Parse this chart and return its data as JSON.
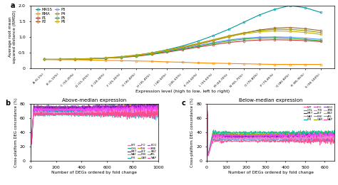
{
  "panel_a": {
    "xlabel": "Expression level (high to low, left to right)",
    "ylabel": "Average root mean\nsquared distance (RMSD)",
    "xlabels": [
      "A (0-1%)",
      "B (5-15%)",
      "C (10-20%)",
      "D (15-25%)",
      "E (20-30%)",
      "F (25-35%)",
      "G (30-40%)",
      "H (35-45%)",
      "I (40-50%)",
      "J (45-55%)",
      "K (50-60%)",
      "L (55-65%)",
      "M (60-70%)",
      "N (65-75%)",
      "O (70-80%)",
      "P (75-85%)",
      "Q (80-90%)",
      "R (85-95%)",
      "S (90-100%)"
    ],
    "ylim": [
      0,
      2.0
    ],
    "yticks": [
      0,
      0.5,
      1.0,
      1.5,
      2.0
    ],
    "series_order": [
      "MASS",
      "RMA",
      "P1",
      "P2",
      "P3",
      "P4",
      "P5",
      "P6"
    ],
    "series": {
      "MASS": {
        "color": "#009999",
        "marker": "o",
        "values": [
          0.28,
          0.28,
          0.29,
          0.3,
          0.32,
          0.35,
          0.41,
          0.49,
          0.59,
          0.71,
          0.86,
          1.04,
          1.24,
          1.47,
          1.7,
          1.88,
          2.0,
          1.93,
          1.78
        ]
      },
      "RMA": {
        "color": "#FF8C00",
        "marker": "o",
        "values": [
          0.28,
          0.27,
          0.27,
          0.26,
          0.25,
          0.24,
          0.23,
          0.22,
          0.2,
          0.19,
          0.17,
          0.16,
          0.15,
          0.14,
          0.13,
          0.12,
          0.12,
          0.12,
          0.12
        ]
      },
      "P1": {
        "color": "#CC3333",
        "marker": "o",
        "values": [
          0.28,
          0.28,
          0.29,
          0.3,
          0.32,
          0.34,
          0.38,
          0.44,
          0.51,
          0.59,
          0.67,
          0.75,
          0.82,
          0.87,
          0.9,
          0.91,
          0.9,
          0.88,
          0.85
        ]
      },
      "P2": {
        "color": "#996633",
        "marker": "o",
        "values": [
          0.28,
          0.28,
          0.29,
          0.3,
          0.32,
          0.35,
          0.4,
          0.47,
          0.55,
          0.65,
          0.76,
          0.88,
          1.0,
          1.12,
          1.22,
          1.28,
          1.3,
          1.26,
          1.2
        ]
      },
      "P3": {
        "color": "#6699FF",
        "marker": "o",
        "values": [
          0.28,
          0.28,
          0.29,
          0.3,
          0.32,
          0.35,
          0.4,
          0.46,
          0.54,
          0.63,
          0.72,
          0.82,
          0.9,
          0.96,
          0.99,
          1.0,
          0.99,
          0.96,
          0.92
        ]
      },
      "P4": {
        "color": "#999900",
        "marker": "o",
        "values": [
          0.28,
          0.28,
          0.29,
          0.31,
          0.33,
          0.37,
          0.42,
          0.49,
          0.58,
          0.68,
          0.79,
          0.91,
          1.03,
          1.13,
          1.2,
          1.24,
          1.24,
          1.2,
          1.14
        ]
      },
      "P5": {
        "color": "#33AA33",
        "marker": "o",
        "values": [
          0.28,
          0.28,
          0.29,
          0.3,
          0.32,
          0.35,
          0.39,
          0.45,
          0.53,
          0.61,
          0.7,
          0.79,
          0.87,
          0.93,
          0.96,
          0.97,
          0.95,
          0.92,
          0.88
        ]
      },
      "P6": {
        "color": "#CCAA00",
        "marker": "o",
        "values": [
          0.28,
          0.28,
          0.29,
          0.3,
          0.33,
          0.36,
          0.41,
          0.48,
          0.57,
          0.67,
          0.78,
          0.9,
          1.01,
          1.1,
          1.16,
          1.19,
          1.18,
          1.14,
          1.08
        ]
      }
    }
  },
  "panel_b": {
    "title": "Above-median expression",
    "panel_label": "b",
    "xlabel": "Number of DEGs ordered by fold change",
    "ylabel": "Cross-platform DEG concordance (%)",
    "xlim": [
      0,
      1000
    ],
    "ylim": [
      0,
      80
    ],
    "yticks": [
      0,
      20,
      40,
      60,
      80
    ],
    "base_levels": [
      75,
      74,
      73,
      72,
      71,
      70,
      69,
      68,
      76,
      65,
      74,
      73,
      72,
      68,
      66
    ],
    "settle_x": 25
  },
  "panel_c": {
    "title": "Below-median expression",
    "panel_label": "c",
    "xlabel": "Number of DEGs ordered by fold change",
    "ylabel": "Cross-platform DEG concordance (%)",
    "xlim": [
      0,
      650
    ],
    "ylim": [
      0,
      80
    ],
    "yticks": [
      0,
      20,
      40,
      60,
      80
    ],
    "base_levels": [
      35,
      34,
      38,
      33,
      37,
      40,
      36,
      32,
      35,
      30,
      34,
      33,
      36,
      32,
      28
    ],
    "settle_x": 30
  },
  "compound_colors": {
    "NIT": "#FF6699",
    "NAF": "#FF8C00",
    "THI": "#CCAA00",
    "CAR": "#88AA00",
    "BEZ": "#AABB00",
    "CHL": "#00BB88",
    "PIR": "#00AAAA",
    "LEF": "#4455FF",
    "ECO": "#8844BB",
    "AFL": "#44BBDD",
    "MET": "#8800CC",
    "IFO": "#CC44CC",
    "PHE": "#FF44FF",
    "3ME": "#FF88CC",
    "NAP": "#FF4488"
  },
  "legend_compounds_order": [
    "NIT",
    "NAF",
    "THI",
    "CAR",
    "BEZ",
    "CHL",
    "PIR",
    "LEF",
    "ECO",
    "AFL",
    "MET",
    "IFO",
    "PHE",
    "3ME",
    "NAP"
  ],
  "legend_grid": [
    [
      "NIT",
      "CHL",
      "MET"
    ],
    [
      "NAF",
      "PIR",
      "IFO"
    ],
    [
      "THI",
      "LEF",
      "PHE"
    ],
    [
      "CAR",
      "ECO",
      "3ME"
    ],
    [
      "BEZ",
      "AFL",
      "NAP"
    ]
  ],
  "background_color": "#ffffff"
}
